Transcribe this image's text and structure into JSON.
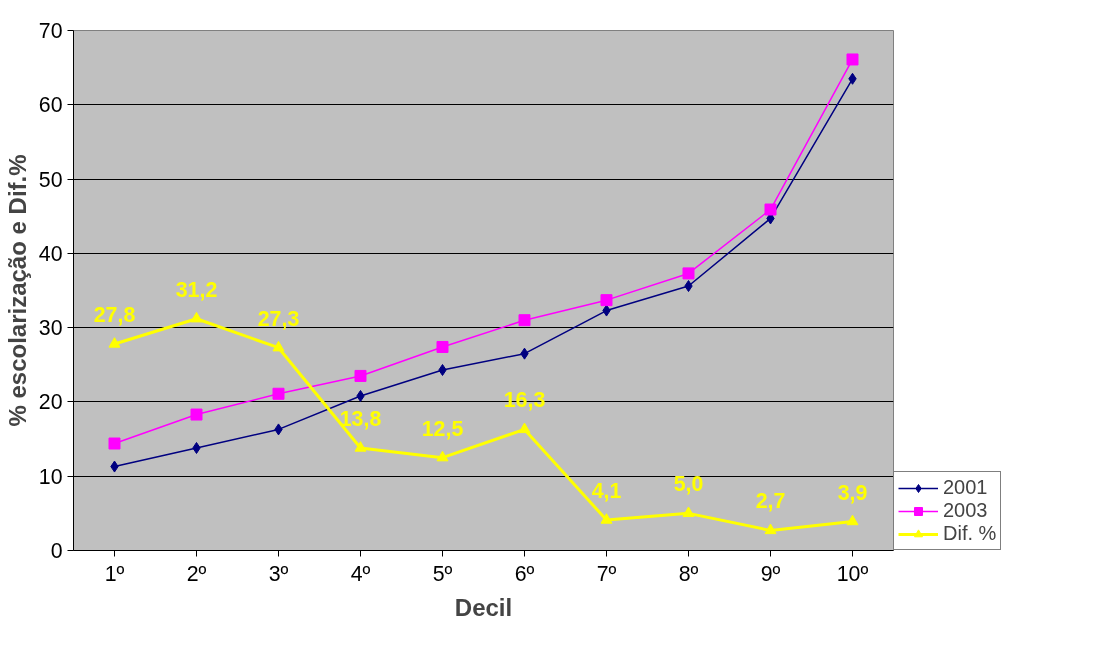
{
  "chart_data": {
    "type": "line",
    "xlabel": "Decil",
    "ylabel": "% escolarização e Dif.%",
    "categories": [
      "1º",
      "2º",
      "3º",
      "4º",
      "5º",
      "6º",
      "7º",
      "8º",
      "9º",
      "10º"
    ],
    "series": [
      {
        "name": "2001",
        "color": "#000080",
        "marker": "diamond",
        "values": [
          11.3,
          13.8,
          16.3,
          20.8,
          24.3,
          26.5,
          32.3,
          35.6,
          44.7,
          63.5
        ]
      },
      {
        "name": "2003",
        "color": "#ff00ff",
        "marker": "square",
        "values": [
          14.4,
          18.3,
          21.1,
          23.5,
          27.4,
          31.0,
          33.7,
          37.3,
          45.9,
          66.1
        ]
      },
      {
        "name": "Dif. %",
        "color": "#ffff00",
        "marker": "triangle",
        "values": [
          27.8,
          31.2,
          27.3,
          13.8,
          12.5,
          16.3,
          4.1,
          5.0,
          2.7,
          3.9
        ],
        "value_labels": [
          "27,8",
          "31,2",
          "27,3",
          "13,8",
          "12,5",
          "16,3",
          "4,1",
          "5,0",
          "2,7",
          "3,9"
        ]
      }
    ],
    "ylim": [
      0,
      70
    ],
    "yticks": [
      0,
      10,
      20,
      30,
      40,
      50,
      60,
      70
    ],
    "grid": "y",
    "legend": "bottom right"
  }
}
